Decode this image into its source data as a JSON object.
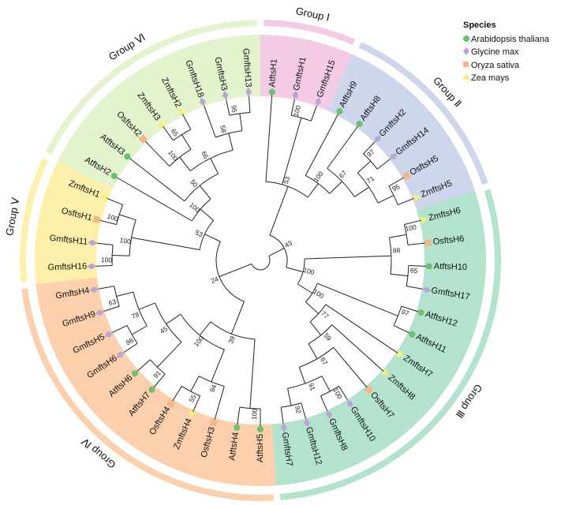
{
  "legend": {
    "title": "Species",
    "items": [
      {
        "label": "Arabidopsis thaliana",
        "marker": "circle",
        "color": "#6cc070"
      },
      {
        "label": "Glycine max",
        "marker": "diamond",
        "color": "#b9a6d6"
      },
      {
        "label": "Oryza sativa",
        "marker": "square",
        "color": "#f7b38a"
      },
      {
        "label": "Zea mays",
        "marker": "triangle",
        "color": "#f5f07a"
      }
    ]
  },
  "groups": [
    {
      "label": "Group Ⅰ",
      "first": "AtftsH1",
      "last": "GmftsH15",
      "band": "#f3cbe5",
      "ring": "#f3cbe5"
    },
    {
      "label": "Group Ⅱ",
      "first": "AtftsH9",
      "last": "ZmftsH5",
      "band": "#cdd6ea",
      "ring": "#cdd6ea"
    },
    {
      "label": "Group Ⅲ",
      "first": "ZmftsH6",
      "last": "GmftsH7",
      "band": "#b3e3cd",
      "ring": "#b3e3cd"
    },
    {
      "label": "Group Ⅳ",
      "first": "AtftsH5",
      "last": "GmftsH4",
      "band": "#fccfad",
      "ring": "#fccfad"
    },
    {
      "label": "Group Ⅴ",
      "first": "GmftsH16",
      "last": "ZmftsH1",
      "band": "#fcf0aa",
      "ring": "#fcf0aa"
    },
    {
      "label": "Group Ⅵ",
      "first": "AtftsH2",
      "last": "GmftsH13",
      "band": "#e3f3cd",
      "ring": "#e3f3cd"
    }
  ],
  "leaves": [
    {
      "name": "AtftsH1",
      "species": 0
    },
    {
      "name": "GmftsH1",
      "species": 1
    },
    {
      "name": "GmftsH15",
      "species": 1
    },
    {
      "name": "AtftsH9",
      "species": 0
    },
    {
      "name": "AtftsH8",
      "species": 0
    },
    {
      "name": "GmftsH2",
      "species": 1
    },
    {
      "name": "GmftsH14",
      "species": 1
    },
    {
      "name": "OsftsH5",
      "species": 2
    },
    {
      "name": "ZmftsH5",
      "species": 3
    },
    {
      "name": "ZmftsH6",
      "species": 3
    },
    {
      "name": "OsftsH6",
      "species": 2
    },
    {
      "name": "AtftsH10",
      "species": 0
    },
    {
      "name": "GmftsH17",
      "species": 1
    },
    {
      "name": "AtftsH12",
      "species": 0
    },
    {
      "name": "AtftsH11",
      "species": 0
    },
    {
      "name": "ZmftsH7",
      "species": 3
    },
    {
      "name": "ZmftsH8",
      "species": 3
    },
    {
      "name": "OsftsH7",
      "species": 2
    },
    {
      "name": "GmftsH10",
      "species": 1
    },
    {
      "name": "GmftsH8",
      "species": 1
    },
    {
      "name": "GmftsH12",
      "species": 1
    },
    {
      "name": "GmftsH7",
      "species": 1
    },
    {
      "name": "AtftsH5",
      "species": 0
    },
    {
      "name": "AtftsH4",
      "species": 0
    },
    {
      "name": "OsftsH3",
      "species": 2
    },
    {
      "name": "ZmftsH4",
      "species": 3
    },
    {
      "name": "OsftsH4",
      "species": 2
    },
    {
      "name": "AtftsH7",
      "species": 0
    },
    {
      "name": "AtftsH6",
      "species": 0
    },
    {
      "name": "GmftsH6",
      "species": 1
    },
    {
      "name": "GmftsH5",
      "species": 1
    },
    {
      "name": "GmftsH9",
      "species": 1
    },
    {
      "name": "GmftsH4",
      "species": 1
    },
    {
      "name": "GmftsH16",
      "species": 1
    },
    {
      "name": "GmftsH11",
      "species": 1
    },
    {
      "name": "OsftsH1",
      "species": 2
    },
    {
      "name": "ZmftsH1",
      "species": 3
    },
    {
      "name": "AtftsH2",
      "species": 0
    },
    {
      "name": "AtftsH3",
      "species": 0
    },
    {
      "name": "OsftsH2",
      "species": 2
    },
    {
      "name": "ZmftsH3",
      "species": 3
    },
    {
      "name": "ZmftsH2",
      "species": 3
    },
    {
      "name": "GmftsH18",
      "species": 1
    },
    {
      "name": "GmftsH3",
      "species": 1
    },
    {
      "name": "GmftsH13",
      "species": 1
    }
  ],
  "tree": {
    "c": [
      {
        "b": 43,
        "c": [
          {
            "b": 53,
            "c": [
              "AtftsH1",
              {
                "b": 100,
                "c": [
                  "GmftsH1",
                  "GmftsH15"
                ]
              },
              {
                "b": 100,
                "c": [
                  "AtftsH9",
                  {
                    "b": 67,
                    "c": [
                      "AtftsH8",
                      {
                        "b": 71,
                        "c": [
                          {
                            "b": 97,
                            "c": [
                              "GmftsH2",
                              "GmftsH14"
                            ]
                          },
                          {
                            "b": 95,
                            "c": [
                              "OsftsH5",
                              "ZmftsH5"
                            ]
                          }
                        ]
                      }
                    ]
                  }
                ]
              }
            ]
          },
          {
            "b": 100,
            "c": [
              {
                "b": 88,
                "c": [
                  {
                    "b": 100,
                    "c": [
                      "ZmftsH6",
                      "OsftsH6"
                    ]
                  },
                  {
                    "b": 65,
                    "c": [
                      "AtftsH10",
                      "GmftsH17"
                    ]
                  }
                ]
              },
              {
                "b": 100,
                "c": [
                  {
                    "b": 97,
                    "c": [
                      "AtftsH12",
                      "AtftsH11"
                    ]
                  },
                  {
                    "b": 77,
                    "c": [
                      "ZmftsH7",
                      {
                        "b": 59,
                        "c": [
                          "ZmftsH8",
                          {
                            "b": 67,
                            "c": [
                              "OsftsH7",
                              {
                                "b": 91,
                                "c": [
                                  {
                                    "b": 100,
                                    "c": [
                                      "GmftsH10",
                                      "GmftsH8"
                                    ]
                                  },
                                  {
                                    "b": 92,
                                    "c": [
                                      "GmftsH12",
                                      "GmftsH7"
                                    ]
                                  }
                                ]
                              }
                            ]
                          }
                        ]
                      }
                    ]
                  }
                ]
              }
            ]
          }
        ]
      },
      {
        "b": 24,
        "c": [
          {
            "b": 39,
            "c": [
              {
                "b": 100,
                "c": [
                  "AtftsH5",
                  "AtftsH4"
                ]
              },
              {
                "b": 100,
                "c": [
                  {
                    "b": 94,
                    "c": [
                      "OsftsH3",
                      {
                        "b": 55,
                        "c": [
                          "ZmftsH4",
                          "OsftsH4"
                        ]
                      }
                    ]
                  },
                  {
                    "b": 45,
                    "c": [
                      {
                        "b": 91,
                        "c": [
                          "AtftsH7",
                          "AtftsH6"
                        ]
                      },
                      {
                        "b": 78,
                        "c": [
                          {
                            "b": 98,
                            "c": [
                              "GmftsH6",
                              "GmftsH5"
                            ]
                          },
                          {
                            "b": 63,
                            "c": [
                              "GmftsH9",
                              "GmftsH4"
                            ]
                          }
                        ]
                      }
                    ]
                  }
                ]
              }
            ]
          },
          {
            "b": 53,
            "c": [
              {
                "b": 100,
                "c": [
                  {
                    "b": 100,
                    "c": [
                      "GmftsH16",
                      "GmftsH11"
                    ]
                  },
                  {
                    "b": 100,
                    "c": [
                      "OsftsH1",
                      "ZmftsH1"
                    ]
                  }
                ]
              },
              {
                "b": 100,
                "c": [
                  "AtftsH2",
                  {
                    "b": 50,
                    "c": [
                      "AtftsH3",
                      {
                        "b": 66,
                        "c": [
                          {
                            "b": 100,
                            "c": [
                              "OsftsH2",
                              {
                                "b": 65,
                                "c": [
                                  "ZmftsH3",
                                  "ZmftsH2"
                                ]
                              }
                            ]
                          },
                          {
                            "b": 58,
                            "c": [
                              "GmftsH18",
                              {
                                "b": 95,
                                "c": [
                                  "GmftsH3",
                                  "GmftsH13"
                                ]
                              }
                            ]
                          }
                        ]
                      }
                    ]
                  }
                ]
              }
            ]
          }
        ]
      }
    ]
  }
}
